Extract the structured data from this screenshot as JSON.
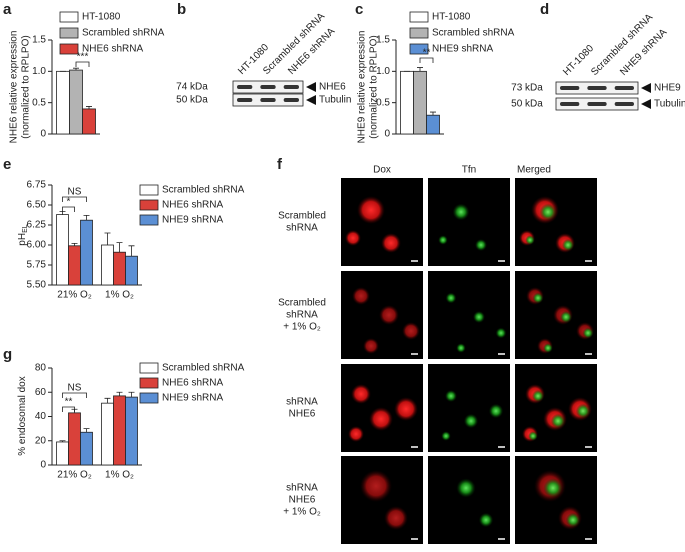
{
  "chart_data": [
    {
      "type": "bar",
      "panel_label": "a",
      "y_label": [
        "NHE6 relative expression",
        "(normalized to RPLPO)"
      ],
      "categories": [
        null
      ],
      "series": [
        {
          "name": "HT-1080",
          "color": "#ffffff",
          "values": [
            1.0
          ],
          "errors": [
            0.0
          ]
        },
        {
          "name": "Scrambled shRNA",
          "color": "#b3b3b3",
          "values": [
            1.02
          ],
          "errors": [
            0.03
          ]
        },
        {
          "name": "NHE6 shRNA",
          "color": "#d9413a",
          "values": [
            0.4
          ],
          "errors": [
            0.04
          ]
        }
      ],
      "ylim": [
        0,
        1.5
      ],
      "yticks": [
        0,
        0.5,
        {
          "value": 1,
          "label": "1.0"
        },
        1.5
      ],
      "annotations": [
        "***"
      ]
    },
    {
      "type": "bar",
      "panel_label": "c",
      "y_label": [
        "NHE9 relative expression",
        "(normalized to RPLPO)"
      ],
      "categories": [
        null
      ],
      "series": [
        {
          "name": "HT-1080",
          "color": "#ffffff",
          "values": [
            1.0
          ],
          "errors": [
            0.0
          ]
        },
        {
          "name": "Scrambled shRNA",
          "color": "#b3b3b3",
          "values": [
            1.0
          ],
          "errors": [
            0.06
          ]
        },
        {
          "name": "NHE9 shRNA",
          "color": "#5b8fd4",
          "values": [
            0.3
          ],
          "errors": [
            0.05
          ]
        }
      ],
      "ylim": [
        0,
        1.5
      ],
      "yticks": [
        0,
        0.5,
        {
          "value": 1,
          "label": "1.0"
        },
        1.5
      ],
      "annotations": [
        "**"
      ]
    },
    {
      "type": "bar",
      "panel_label": "e",
      "y_label": "pH",
      "y_label_sub": "EL",
      "categories": [
        "21% O₂",
        "1% O₂"
      ],
      "series": [
        {
          "name": "Scrambled shRNA",
          "color": "#ffffff",
          "values": [
            6.38,
            6.0
          ],
          "errors": [
            0.04,
            0.15
          ]
        },
        {
          "name": "NHE6 shRNA",
          "color": "#d9413a",
          "values": [
            5.99,
            5.91
          ],
          "errors": [
            0.03,
            0.12
          ]
        },
        {
          "name": "NHE9 shRNA",
          "color": "#5b8fd4",
          "values": [
            6.31,
            5.86
          ],
          "errors": [
            0.06,
            0.13
          ]
        }
      ],
      "ylim": [
        5.5,
        6.75
      ],
      "yticks": [
        {
          "value": 5.5,
          "label": "5.50"
        },
        5.75,
        {
          "value": 6,
          "label": "6.00"
        },
        6.25,
        {
          "value": 6.5,
          "label": "6.50"
        },
        6.75
      ],
      "annotations": [
        "*",
        "NS"
      ]
    },
    {
      "type": "bar",
      "panel_label": "g",
      "y_label": "% endosomal dox",
      "categories": [
        "21% O₂",
        "1% O₂"
      ],
      "series": [
        {
          "name": "Scrambled shRNA",
          "color": "#ffffff",
          "values": [
            19,
            51
          ],
          "errors": [
            1,
            4
          ]
        },
        {
          "name": "NHE6 shRNA",
          "color": "#d9413a",
          "values": [
            43,
            57
          ],
          "errors": [
            3,
            3
          ]
        },
        {
          "name": "NHE9 shRNA",
          "color": "#5b8fd4",
          "values": [
            27,
            56
          ],
          "errors": [
            3,
            4
          ]
        }
      ],
      "ylim": [
        0,
        80
      ],
      "yticks": [
        0,
        20,
        40,
        60,
        80
      ],
      "annotations": [
        "**",
        "NS"
      ]
    }
  ],
  "blots": [
    {
      "panel_label": "b",
      "lanes": [
        "HT-1080",
        "Scrambled shRNA",
        "NHE6 shRNA"
      ],
      "bands": [
        {
          "size": "74 kDa",
          "protein": "NHE6"
        },
        {
          "size": "50 kDa",
          "protein": "Tubulin"
        }
      ]
    },
    {
      "panel_label": "d",
      "lanes": [
        "HT-1080",
        "Scrambled shRNA",
        "NHE9 shRNA"
      ],
      "bands": [
        {
          "size": "73 kDa",
          "protein": "NHE9"
        },
        {
          "size": "50 kDa",
          "protein": "Tubulin"
        }
      ]
    }
  ],
  "micrographs": {
    "panel_label": "f",
    "columns": [
      "Dox",
      "Tfn",
      "Merged"
    ],
    "row_labels": [
      [
        "Scrambled",
        "shRNA"
      ],
      [
        "Scrambled",
        "shRNA",
        "+ 1% O₂"
      ],
      [
        "shRNA",
        "NHE6"
      ],
      [
        "shRNA",
        "NHE6",
        "+ 1% O₂"
      ]
    ]
  }
}
